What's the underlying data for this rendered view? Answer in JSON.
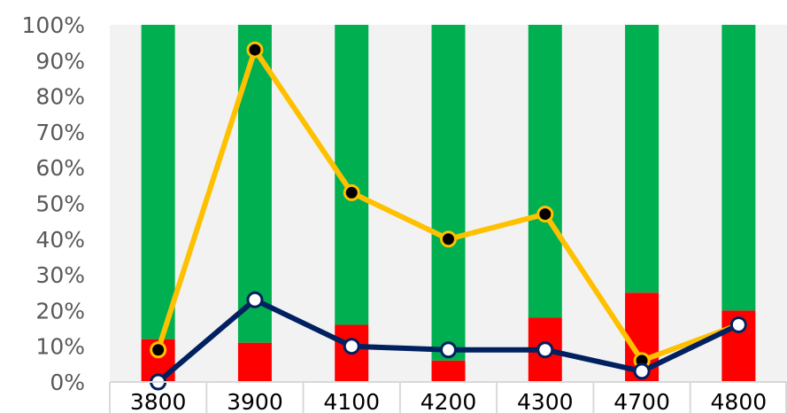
{
  "chart_data": {
    "type": "bar",
    "categories": [
      "3800",
      "3900",
      "4100",
      "4200",
      "4300",
      "4700",
      "4800"
    ],
    "ylim": [
      0,
      100
    ],
    "yticks": [
      "0%",
      "10%",
      "20%",
      "30%",
      "40%",
      "50%",
      "60%",
      "70%",
      "80%",
      "90%",
      "100%"
    ],
    "grid": false,
    "stacked_bars": [
      {
        "color": "#ff0000",
        "values": [
          12,
          11,
          16,
          6,
          18,
          25,
          20
        ]
      },
      {
        "color": "#00b050",
        "values": [
          88,
          89,
          84,
          94,
          82,
          75,
          80
        ]
      }
    ],
    "lines": [
      {
        "color": "#ffc000",
        "marker_fill": "#000000",
        "values": [
          9,
          93,
          53,
          40,
          47,
          6,
          16
        ]
      },
      {
        "color": "#002060",
        "marker_fill": "#ffffff",
        "values": [
          0,
          23,
          10,
          9,
          9,
          3,
          16
        ]
      }
    ]
  }
}
